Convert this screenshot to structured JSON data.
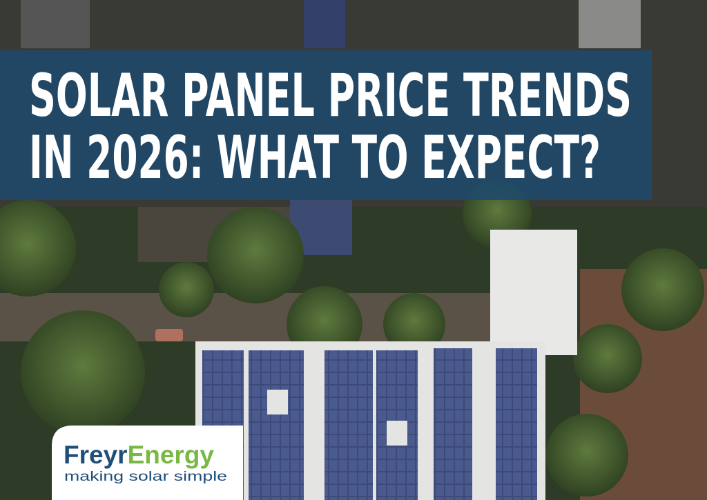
{
  "banner": {
    "title_lines": [
      "SOLAR PANEL PRICE TRENDS",
      "IN 2026: WHAT TO EXPECT?"
    ]
  },
  "logo": {
    "brand_first": "Freyr",
    "brand_second": "Energy",
    "tagline": "making solar simple"
  }
}
